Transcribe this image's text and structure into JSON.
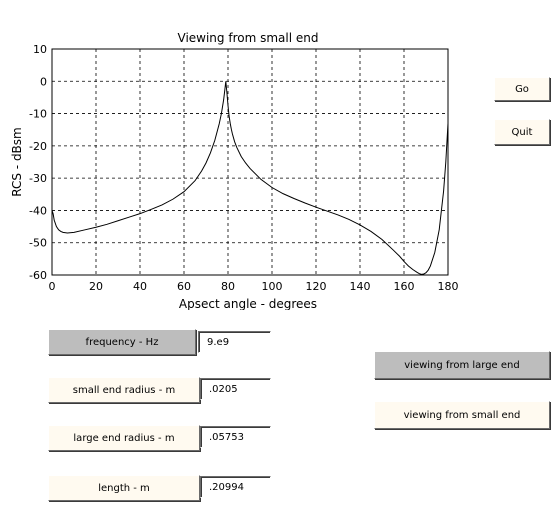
{
  "chart_data": {
    "type": "line",
    "title": "Viewing from small end",
    "xlabel": "Apsect angle - degrees",
    "ylabel": "RCS - dBsm",
    "xlim": [
      0,
      180
    ],
    "ylim": [
      -60,
      10
    ],
    "xticks": [
      "0",
      "20",
      "40",
      "60",
      "80",
      "100",
      "120",
      "140",
      "160",
      "180"
    ],
    "yticks": [
      "10",
      "0",
      "-10",
      "-20",
      "-30",
      "-40",
      "-50",
      "-60"
    ],
    "grid": true,
    "series": [
      {
        "x": [
          0,
          0.5,
          1,
          2,
          3,
          4,
          5,
          7,
          10,
          15,
          20,
          25,
          30,
          35,
          40,
          45,
          50,
          55,
          60,
          65,
          68,
          70,
          72,
          74,
          76,
          77,
          78,
          78.5,
          79,
          79.5,
          80,
          80.5,
          81,
          81.5,
          82,
          83,
          84,
          86,
          88,
          90,
          95,
          100,
          105,
          110,
          115,
          120,
          125,
          130,
          135,
          140,
          145,
          150,
          155,
          158,
          160,
          162,
          164,
          166,
          167,
          168,
          169,
          170,
          171,
          172,
          174,
          176,
          178,
          179,
          180
        ],
        "y": [
          -40,
          -41,
          -43,
          -45,
          -46,
          -46.5,
          -46.8,
          -47,
          -46.8,
          -46,
          -45.2,
          -44.3,
          -43.2,
          -42.1,
          -41,
          -39.7,
          -38.3,
          -36.5,
          -34.2,
          -30.8,
          -27.8,
          -25.3,
          -22.2,
          -18.3,
          -13.2,
          -10,
          -5.8,
          -3,
          0,
          -3.5,
          -7.5,
          -10.8,
          -13,
          -14.8,
          -16.3,
          -18.7,
          -20.5,
          -23.3,
          -25.3,
          -27,
          -30.4,
          -32.9,
          -34.8,
          -36.3,
          -37.7,
          -39,
          -40.2,
          -41.4,
          -42.8,
          -44.5,
          -46.5,
          -49,
          -52.2,
          -54.2,
          -55.8,
          -57.2,
          -58.3,
          -59.2,
          -59.6,
          -59.8,
          -59.7,
          -59.3,
          -58.5,
          -57.2,
          -53,
          -46,
          -34,
          -25,
          -13
        ]
      }
    ]
  },
  "buttons": {
    "go": "Go",
    "quit": "Quit",
    "frequency": "frequency - Hz",
    "small_radius": "small end radius - m",
    "large_radius": "large end radius - m",
    "length": "length - m",
    "view_large": "viewing from large end",
    "view_small": "viewing from small end"
  },
  "fields": {
    "frequency": "9.e9",
    "small_radius": ".0205",
    "large_radius": ".05753",
    "length": ".20994"
  },
  "colors": {
    "active_button": "#bdbdbd",
    "idle_button": "#fffaf0"
  }
}
